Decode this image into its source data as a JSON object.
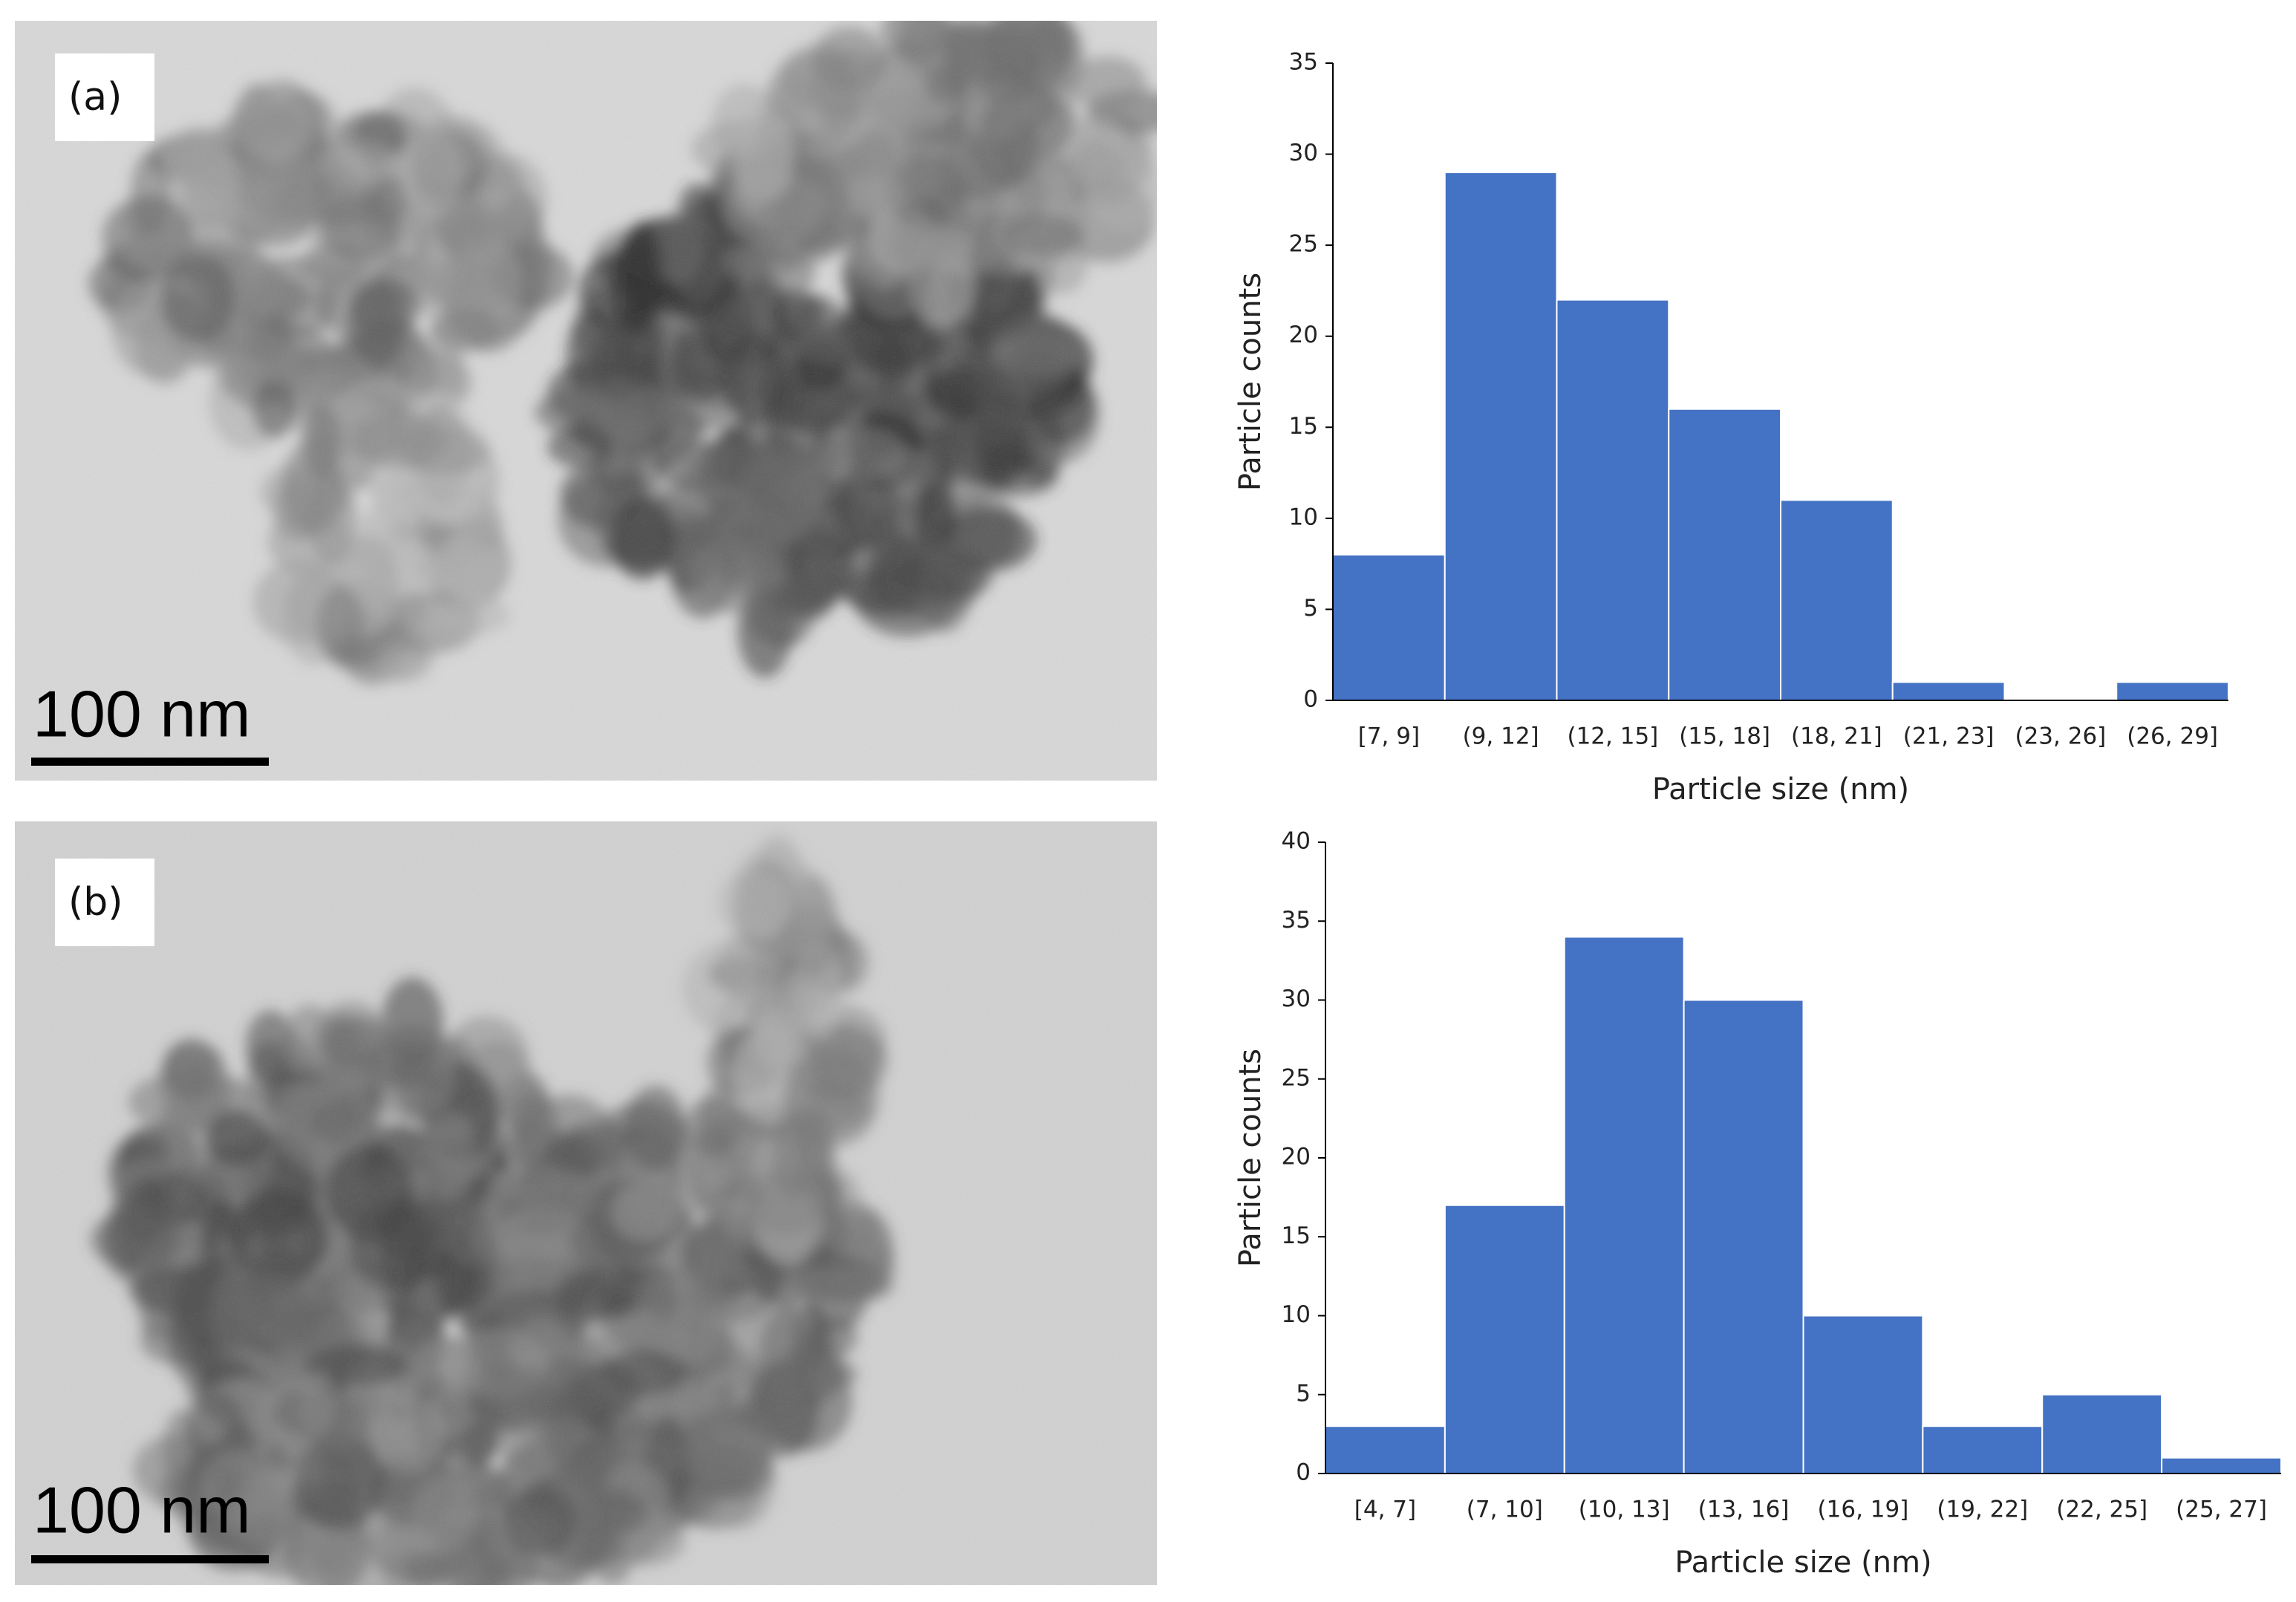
{
  "panels": [
    {
      "label": "(a)",
      "scale_bar": "100 nm"
    },
    {
      "label": "(b)",
      "scale_bar": "100 nm"
    }
  ],
  "chart_data": [
    {
      "type": "bar",
      "x_label": "Particle size (nm)",
      "y_label": "Particle counts",
      "categories": [
        "[7, 9]",
        "(9, 12]",
        "(12, 15]",
        "(15, 18]",
        "(18, 21]",
        "(21, 23]",
        "(23, 26]",
        "(26, 29]"
      ],
      "values": [
        8,
        29,
        22,
        16,
        11,
        1,
        0,
        1
      ],
      "color": "#4472c4",
      "ylim": [
        0,
        35
      ],
      "yticks": [
        0,
        5,
        10,
        15,
        20,
        25,
        30,
        35
      ],
      "grid": false
    },
    {
      "type": "bar",
      "x_label": "Particle size (nm)",
      "y_label": "Particle counts",
      "categories": [
        "[4, 7]",
        "(7, 10]",
        "(10, 13]",
        "(13, 16]",
        "(16, 19]",
        "(19, 22]",
        "(22, 25]",
        "(25, 27]"
      ],
      "values": [
        3,
        17,
        34,
        30,
        10,
        3,
        5,
        1
      ],
      "color": "#4472c4",
      "ylim": [
        0,
        40
      ],
      "yticks": [
        0,
        5,
        10,
        15,
        20,
        25,
        30,
        35,
        40
      ],
      "grid": false
    }
  ]
}
